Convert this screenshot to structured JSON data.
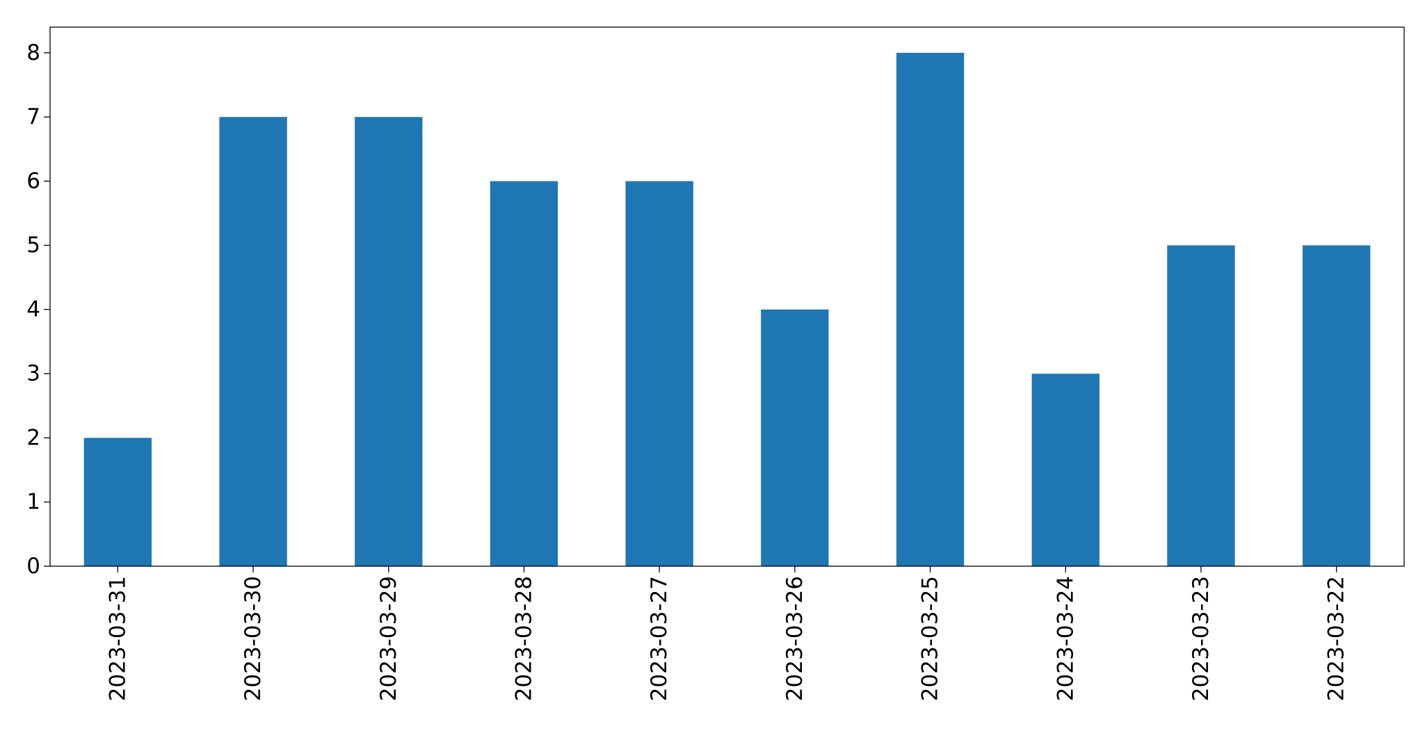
{
  "chart_data": {
    "type": "bar",
    "categories": [
      "2023-03-31",
      "2023-03-30",
      "2023-03-29",
      "2023-03-28",
      "2023-03-27",
      "2023-03-26",
      "2023-03-25",
      "2023-03-24",
      "2023-03-23",
      "2023-03-22"
    ],
    "values": [
      2,
      7,
      7,
      6,
      6,
      4,
      8,
      3,
      5,
      5
    ],
    "color": "#1f77b4",
    "ylim": [
      0,
      8.4
    ],
    "yticks": [
      0,
      1,
      2,
      3,
      4,
      5,
      6,
      7,
      8
    ],
    "grid": false
  }
}
